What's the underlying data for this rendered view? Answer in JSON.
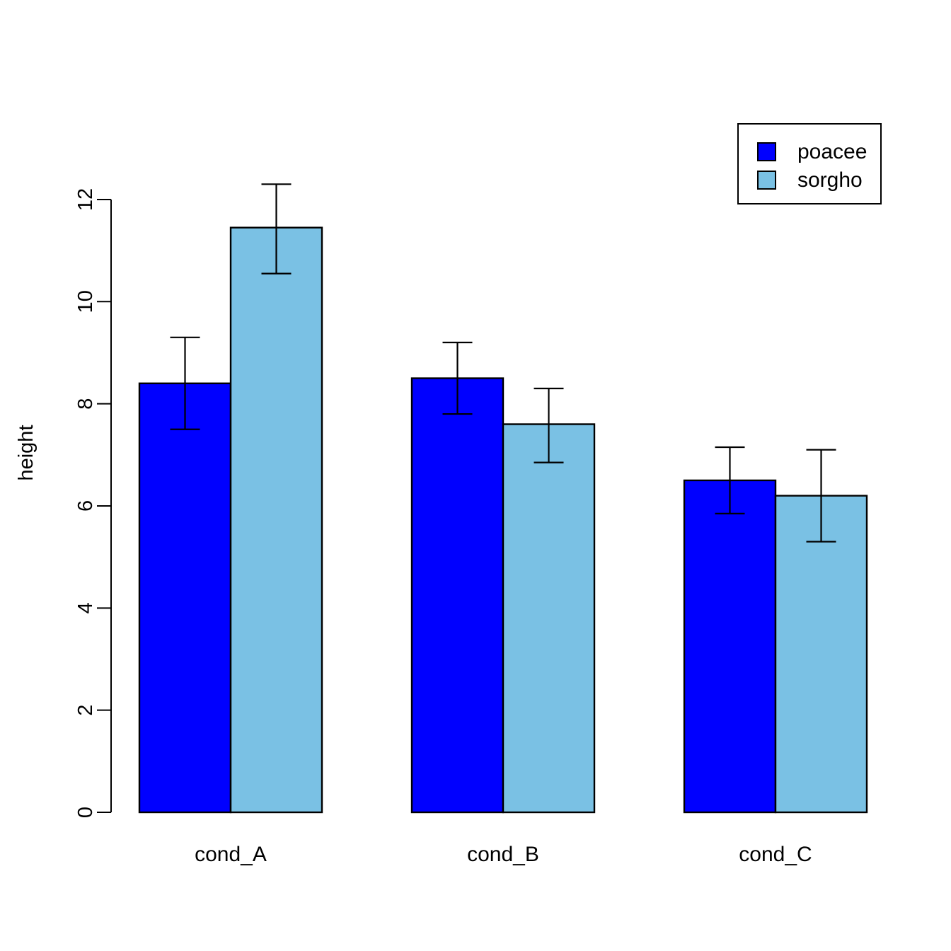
{
  "figure": {
    "background": "#ffffff",
    "axis_color": "#000000"
  },
  "chart_data": {
    "type": "bar",
    "title": "",
    "xlabel": "",
    "ylabel": "height",
    "categories": [
      "cond_A",
      "cond_B",
      "cond_C"
    ],
    "series": [
      {
        "name": "poacee",
        "color": "#0000ff",
        "values": [
          8.4,
          8.5,
          6.5
        ],
        "err_low": [
          7.5,
          7.8,
          5.85
        ],
        "err_high": [
          9.3,
          9.2,
          7.15
        ]
      },
      {
        "name": "sorgho",
        "color": "#7ac1e4",
        "values": [
          11.45,
          7.6,
          6.2
        ],
        "err_low": [
          10.55,
          6.85,
          5.3
        ],
        "err_high": [
          12.3,
          8.3,
          7.1
        ]
      }
    ],
    "ylim": [
      0,
      12
    ],
    "yticks": [
      0,
      2,
      4,
      6,
      8,
      10,
      12
    ],
    "grid": "off",
    "legend": {
      "position": "topright",
      "items": [
        "poacee",
        "sorgho"
      ]
    },
    "error_bars": "both-caps",
    "bar_outline_color": "#000000"
  }
}
